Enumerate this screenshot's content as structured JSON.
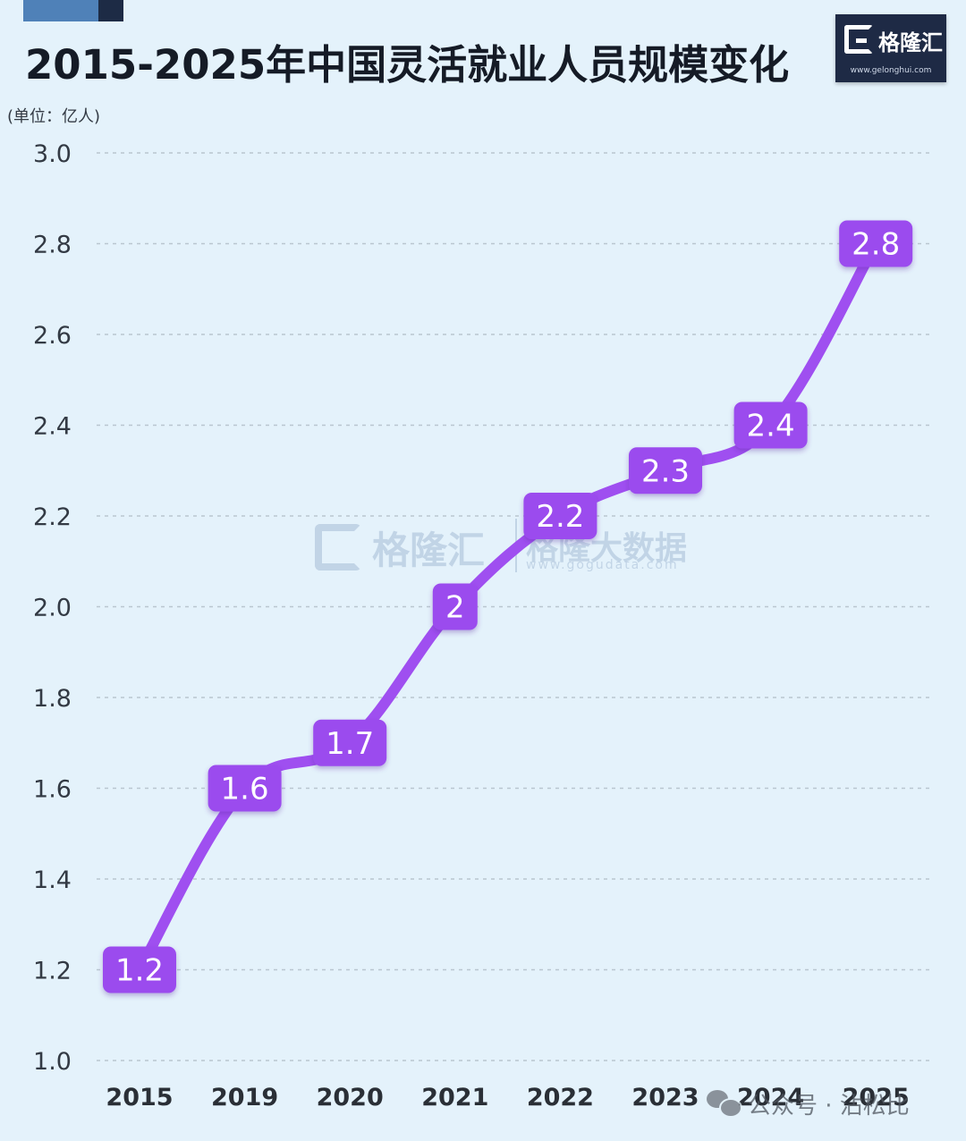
{
  "title": "2015-2025年中国灵活就业人员规模变化",
  "unit_label": "(单位：亿人)",
  "logo": {
    "name": "格隆汇",
    "url": "www.gelonghui.com"
  },
  "watermark": {
    "name": "格隆汇",
    "name2": "格隆大数据",
    "url": "www.gogudata.com"
  },
  "footer": {
    "text": "公众号 · 沾松比"
  },
  "colors": {
    "background": "#e4f2fb",
    "line": "#9f4ff0",
    "label_bg": "#9b4cee",
    "label_text": "#ffffff",
    "axis_text": "#333a44",
    "grid": "#b9c6d0"
  },
  "chart_data": {
    "type": "line",
    "categories": [
      "2015",
      "2019",
      "2020",
      "2021",
      "2022",
      "2023",
      "2024",
      "2025"
    ],
    "values": [
      1.2,
      1.6,
      1.7,
      2.0,
      2.2,
      2.3,
      2.4,
      2.8
    ],
    "data_labels": [
      "1.2",
      "1.6",
      "1.7",
      "2",
      "2.2",
      "2.3",
      "2.4",
      "2.8"
    ],
    "yticks": [
      "1.0",
      "1.2",
      "1.4",
      "1.6",
      "1.8",
      "2.0",
      "2.2",
      "2.4",
      "2.6",
      "2.8",
      "3.0"
    ],
    "ylim": [
      1.0,
      3.0
    ],
    "title": "2015-2025年中国灵活就业人员规模变化",
    "ylabel": "(单位：亿人)",
    "xlabel": "",
    "grid": "horizontal dashed",
    "legend": "none"
  }
}
